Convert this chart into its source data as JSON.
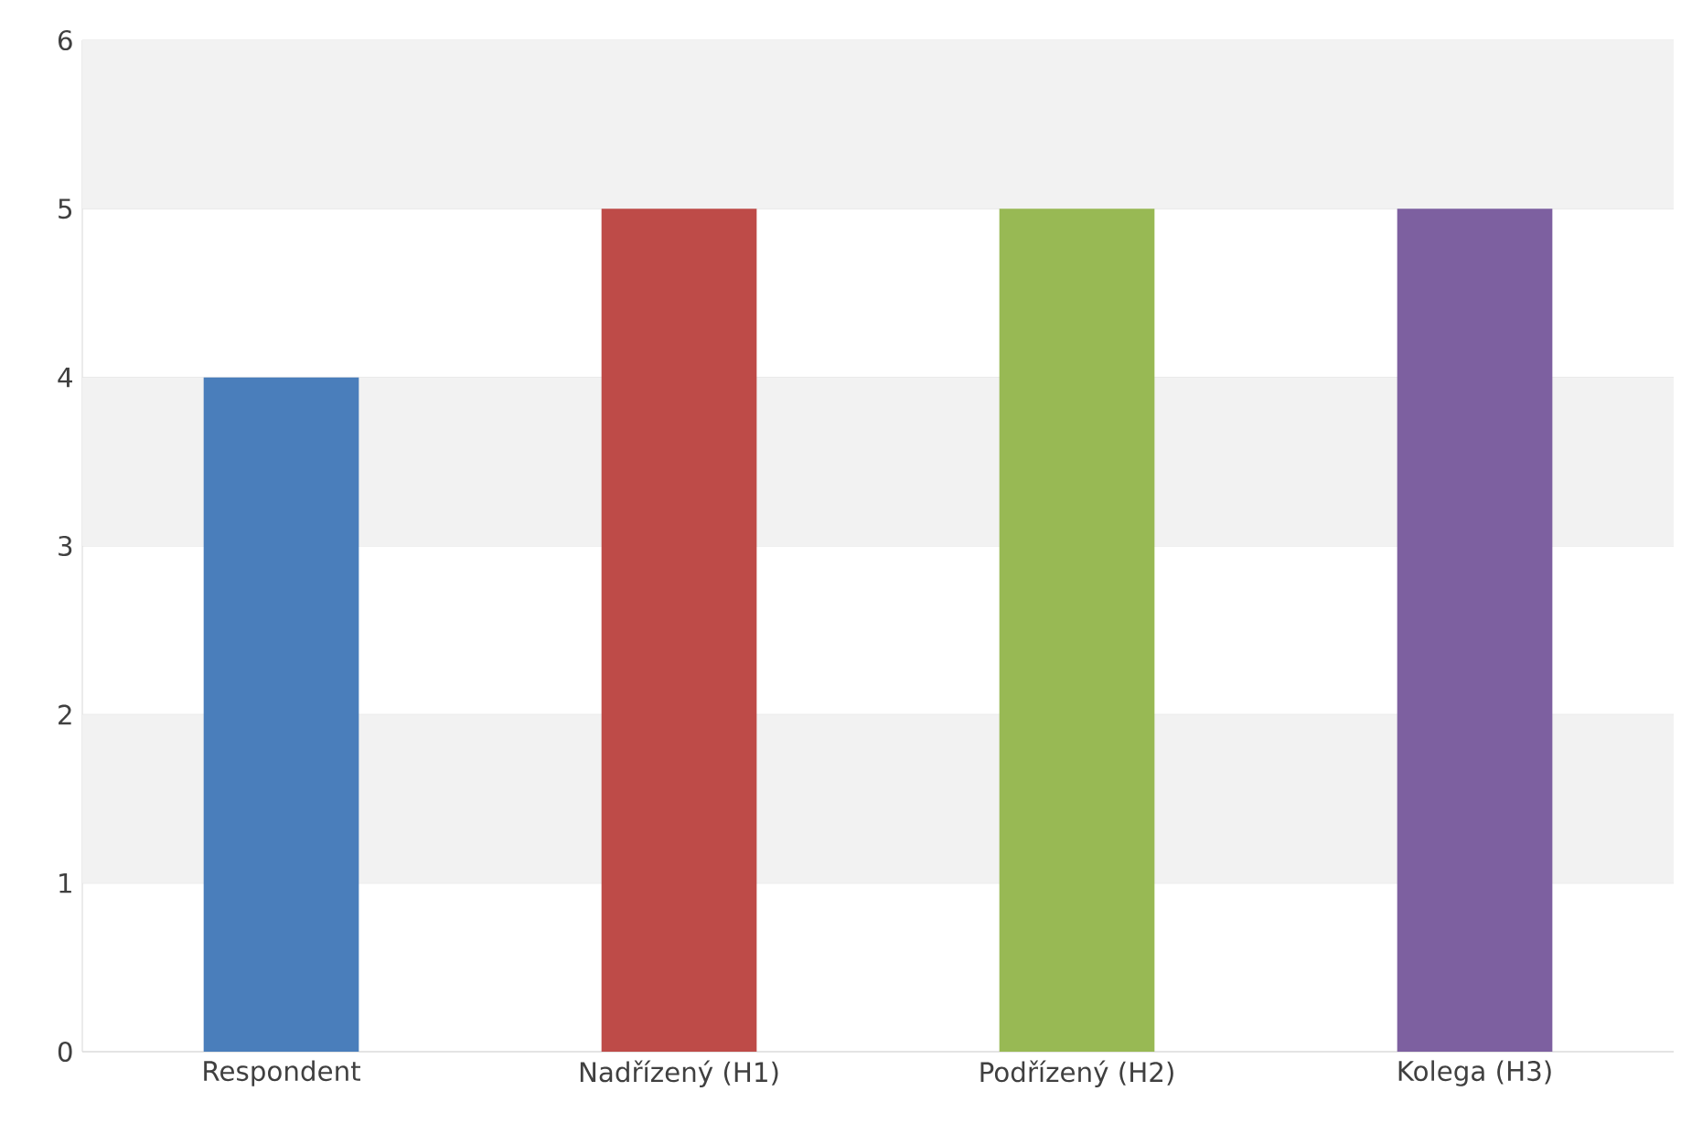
{
  "chart_data": {
    "type": "bar",
    "categories": [
      "Respondent",
      "Nadřízený (H1)",
      "Podřízený (H2)",
      "Kolega (H3)"
    ],
    "values": [
      4,
      5,
      5,
      5
    ],
    "colors": [
      "#4a7ebb",
      "#be4b48",
      "#98b954",
      "#7d60a0"
    ],
    "ylim": [
      0,
      6
    ],
    "yticks": [
      0,
      1,
      2,
      3,
      4,
      5,
      6
    ],
    "grid": "y"
  }
}
